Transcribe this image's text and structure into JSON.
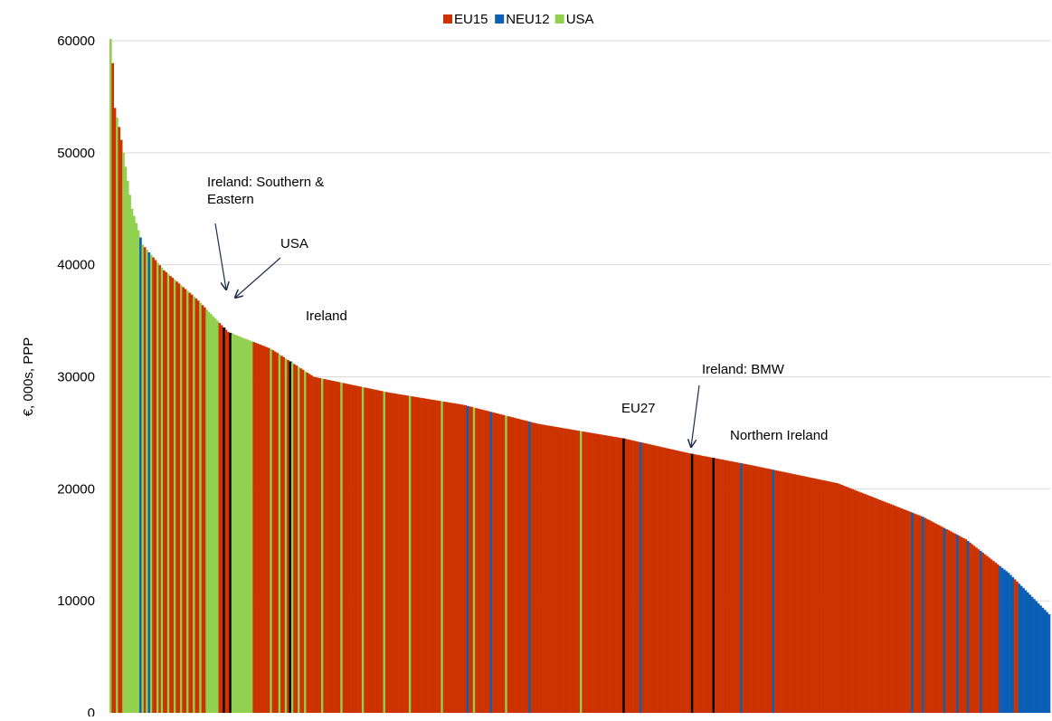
{
  "chart_data": {
    "type": "bar",
    "y_axis": {
      "label": "€, 000s, PPP",
      "range": [
        0,
        60000
      ],
      "ticks": [
        0,
        10000,
        20000,
        30000,
        40000,
        50000,
        60000
      ]
    },
    "grid": "horizontal",
    "legend": {
      "placement": "top-center",
      "entries": [
        {
          "name": "EU15",
          "color": "#cc3300"
        },
        {
          "name": "NEU12",
          "color": "#0b5fb4"
        },
        {
          "name": "USA",
          "color": "#92d050"
        }
      ]
    },
    "highlight_color": "#000000",
    "bars": {
      "count": 440,
      "order": "descending by value",
      "profile": [
        [
          0,
          62000
        ],
        [
          2,
          54000
        ],
        [
          4,
          52300
        ],
        [
          6,
          50000
        ],
        [
          10,
          45000
        ],
        [
          15,
          41800
        ],
        [
          25,
          39500
        ],
        [
          40,
          37000
        ],
        [
          55,
          34000
        ],
        [
          75,
          32500
        ],
        [
          95,
          30000
        ],
        [
          130,
          28600
        ],
        [
          165,
          27500
        ],
        [
          200,
          25800
        ],
        [
          240,
          24500
        ],
        [
          270,
          23200
        ],
        [
          300,
          22100
        ],
        [
          340,
          20500
        ],
        [
          360,
          19000
        ],
        [
          380,
          17500
        ],
        [
          400,
          15500
        ],
        [
          420,
          12500
        ],
        [
          439,
          8800
        ]
      ],
      "groups": [
        {
          "series": "USA",
          "ranges": [
            [
              0,
              0
            ],
            [
              3,
              3
            ],
            [
              6,
              13
            ],
            [
              15,
              15
            ],
            [
              17,
              17
            ],
            [
              19,
              19
            ],
            [
              22,
              22
            ],
            [
              24,
              24
            ],
            [
              27,
              27
            ],
            [
              30,
              30
            ],
            [
              33,
              33
            ],
            [
              36,
              36
            ],
            [
              39,
              39
            ],
            [
              42,
              42
            ],
            [
              45,
              50
            ],
            [
              56,
              66
            ],
            [
              75,
              75
            ],
            [
              79,
              79
            ],
            [
              82,
              82
            ],
            [
              85,
              85
            ],
            [
              88,
              88
            ],
            [
              91,
              91
            ],
            [
              99,
              99
            ],
            [
              108,
              108
            ],
            [
              118,
              118
            ],
            [
              128,
              128
            ],
            [
              140,
              140
            ],
            [
              155,
              155
            ],
            [
              170,
              170
            ],
            [
              185,
              185
            ],
            [
              220,
              220
            ],
            [
              248,
              248
            ]
          ]
        },
        {
          "series": "NEU12",
          "ranges": [
            [
              14,
              14
            ],
            [
              18,
              18
            ],
            [
              167,
              167
            ],
            [
              178,
              178
            ],
            [
              196,
              196
            ],
            [
              248,
              248
            ],
            [
              295,
              295
            ],
            [
              310,
              310
            ],
            [
              375,
              375
            ],
            [
              380,
              380
            ],
            [
              390,
              390
            ],
            [
              396,
              396
            ],
            [
              401,
              401
            ],
            [
              407,
              407
            ],
            [
              416,
              439
            ]
          ]
        },
        {
          "series": "EU15",
          "ranges": [
            [
              423,
              424
            ]
          ]
        }
      ],
      "highlighted": [
        {
          "label": "Ireland: Southern & Eastern",
          "index": 53
        },
        {
          "label": "USA",
          "index": 56
        },
        {
          "label": "Ireland",
          "index": 84
        },
        {
          "label": "EU27",
          "index": 240
        },
        {
          "label": "Ireland: BMW",
          "index": 272
        },
        {
          "label": "Northern Ireland",
          "index": 282
        }
      ]
    },
    "annotations": [
      {
        "text": [
          "Ireland: Southern &",
          "Eastern"
        ],
        "arrow": true,
        "target": "Ireland: Southern & Eastern"
      },
      {
        "text": [
          "USA"
        ],
        "arrow": true,
        "target": "USA"
      },
      {
        "text": [
          "Ireland"
        ],
        "arrow": false,
        "target": "Ireland"
      },
      {
        "text": [
          "Ireland: BMW"
        ],
        "arrow": true,
        "target": "Ireland: BMW"
      },
      {
        "text": [
          "EU27"
        ],
        "arrow": false,
        "target": "EU27"
      },
      {
        "text": [
          "Northern Ireland"
        ],
        "arrow": false,
        "target": "Northern Ireland"
      }
    ]
  }
}
